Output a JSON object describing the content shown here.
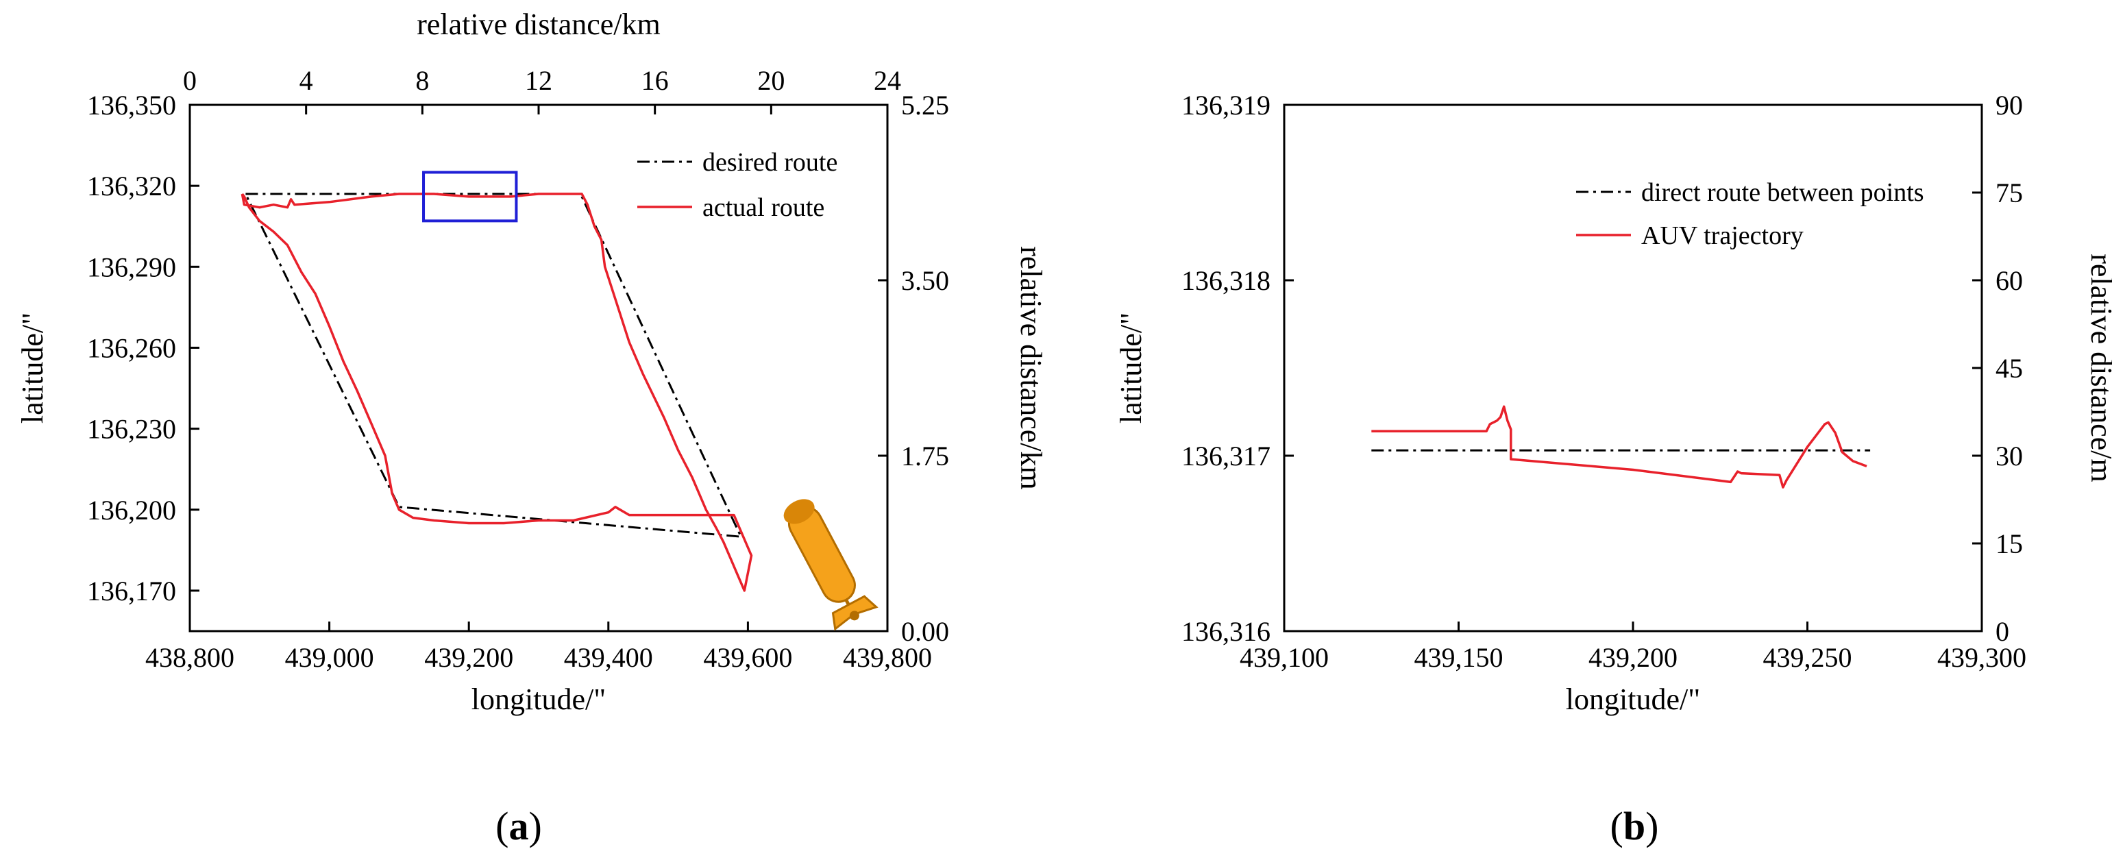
{
  "chart_data": [
    {
      "type": "line",
      "caption_open": "(",
      "caption_letter": "a",
      "caption_close": ")",
      "xlabel": "longitude/\"",
      "ylabel": "latitude/\"",
      "x2label": "relative distance/km",
      "y2label": "relative distance/km",
      "xlim": [
        438800,
        439800
      ],
      "ylim": [
        136155,
        136350
      ],
      "x2lim": [
        0,
        24
      ],
      "y2lim": [
        0,
        5.25
      ],
      "xticks": [
        "438,800",
        "439,000",
        "439,200",
        "439,400",
        "439,600",
        "439,800"
      ],
      "yticks": [
        "136,350",
        "136,320",
        "136,290",
        "136,260",
        "136,230",
        "136,200",
        "136,170"
      ],
      "x2ticks": [
        "0",
        "4",
        "8",
        "12",
        "16",
        "20",
        "24"
      ],
      "y2ticks": [
        "5.25",
        "3.50",
        "1.75",
        "0.00"
      ],
      "legend": {
        "position": "top-right"
      },
      "series": [
        {
          "name": "desired route",
          "style": "dash-dot",
          "color": "#000000",
          "x": [
            438880,
            439360,
            439590,
            439100,
            438880
          ],
          "y": [
            136317,
            136317,
            136190,
            136201,
            136317
          ]
        },
        {
          "name": "actual route",
          "style": "solid",
          "color": "#e8212b",
          "x": [
            438875,
            438878,
            438900,
            438920,
            438940,
            438945,
            438950,
            439000,
            439060,
            439100,
            439150,
            439200,
            439260,
            439300,
            439362,
            439370,
            439380,
            439390,
            439395,
            439410,
            439430,
            439450,
            439480,
            439500,
            439520,
            439540,
            439555,
            439565,
            439575,
            439585,
            439595,
            439605,
            439580,
            439480,
            439430,
            439410,
            439400,
            439350,
            439300,
            439250,
            439200,
            439150,
            439120,
            439100,
            439090,
            439080,
            439060,
            439040,
            439020,
            439000,
            438980,
            438960,
            438940,
            438920,
            438900,
            438885,
            438878,
            438875
          ],
          "y": [
            136317,
            136313,
            136312,
            136313,
            136312,
            136315,
            136313,
            136314,
            136316,
            136317,
            136317,
            136316,
            136316,
            136317,
            136317,
            136313,
            136305,
            136300,
            136290,
            136278,
            136262,
            136250,
            136234,
            136222,
            136212,
            136200,
            136193,
            136188,
            136182,
            136176,
            136170,
            136183,
            136198,
            136198,
            136198,
            136201,
            136199,
            136196,
            136196,
            136195,
            136195,
            136196,
            136197,
            136200,
            136206,
            136220,
            136232,
            136244,
            136255,
            136268,
            136280,
            136288,
            136298,
            136303,
            136307,
            136312,
            136316,
            136317
          ]
        }
      ],
      "annotation": {
        "type": "rectangle",
        "color": "#1f1fd6",
        "x": [
          439135,
          439268
        ],
        "y": [
          136307,
          136325
        ]
      },
      "icon": "auv-icon"
    },
    {
      "type": "line",
      "caption_open": "(",
      "caption_letter": "b",
      "caption_close": ")",
      "xlabel": "longitude/\"",
      "ylabel": "latitude/\"",
      "y2label": "relative distance/m",
      "xlim": [
        439100,
        439300
      ],
      "ylim": [
        136316,
        136319
      ],
      "y2lim": [
        0,
        90
      ],
      "xticks": [
        "439,100",
        "439,150",
        "439,200",
        "439,250",
        "439,300"
      ],
      "yticks": [
        "136,319",
        "136,318",
        "136,317",
        "136,316"
      ],
      "y2ticks": [
        "90",
        "75",
        "60",
        "45",
        "30",
        "15",
        "0"
      ],
      "legend": {
        "position": "top-right"
      },
      "series": [
        {
          "name": "direct route between points",
          "style": "dash-dot",
          "color": "#000000",
          "x": [
            439125,
            439268
          ],
          "y": [
            136317.03,
            136317.03
          ]
        },
        {
          "name": "AUV trajectory",
          "style": "solid",
          "color": "#e8212b",
          "x": [
            439125,
            439158,
            439159,
            439161,
            439162,
            439163,
            439164,
            439165,
            439165,
            439200,
            439228,
            439229,
            439230,
            439231,
            439242,
            439243,
            439244,
            439250,
            439255,
            439256,
            439258,
            439260,
            439263,
            439267
          ],
          "y": [
            136317.14,
            136317.14,
            136317.18,
            136317.2,
            136317.22,
            136317.28,
            136317.2,
            136317.15,
            136316.98,
            136316.92,
            136316.85,
            136316.88,
            136316.91,
            136316.9,
            136316.89,
            136316.82,
            136316.86,
            136317.05,
            136317.18,
            136317.19,
            136317.13,
            136317.02,
            136316.97,
            136316.94
          ]
        }
      ]
    }
  ]
}
